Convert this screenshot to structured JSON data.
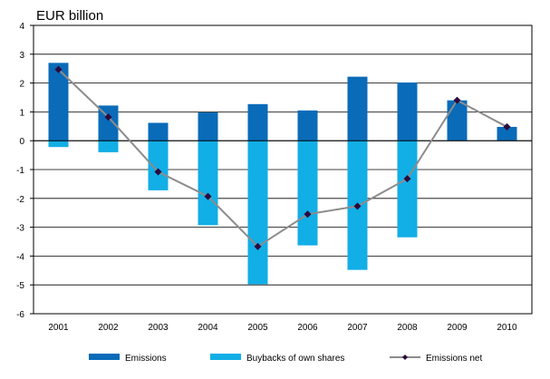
{
  "chart_data": {
    "type": "bar",
    "ylabel": "EUR billion",
    "categories": [
      "2001",
      "2002",
      "2003",
      "2004",
      "2005",
      "2006",
      "2007",
      "2008",
      "2009",
      "2010"
    ],
    "ylim": [
      -6,
      4
    ],
    "yticks": [
      4,
      3,
      2,
      1,
      0,
      -1,
      -2,
      -3,
      -4,
      -5,
      -6
    ],
    "grid": true,
    "legend_position": "bottom",
    "series": [
      {
        "name": "Emissions",
        "kind": "bar",
        "color": "#0a6bb8",
        "values": [
          2.7,
          1.22,
          0.62,
          0.98,
          1.27,
          1.05,
          2.22,
          2.02,
          1.4,
          0.48
        ]
      },
      {
        "name": "Buybacks of own shares",
        "kind": "bar",
        "color": "#12aee6",
        "values": [
          -0.22,
          -0.4,
          -1.72,
          -2.93,
          -4.98,
          -3.63,
          -4.48,
          -3.35,
          0,
          0
        ]
      },
      {
        "name": "Emissions net",
        "kind": "line",
        "color": "#8c8c8c",
        "marker_color": "#2b0a3d",
        "values": [
          2.47,
          0.82,
          -1.08,
          -1.93,
          -3.67,
          -2.55,
          -2.27,
          -1.32,
          1.4,
          0.48
        ]
      }
    ]
  }
}
